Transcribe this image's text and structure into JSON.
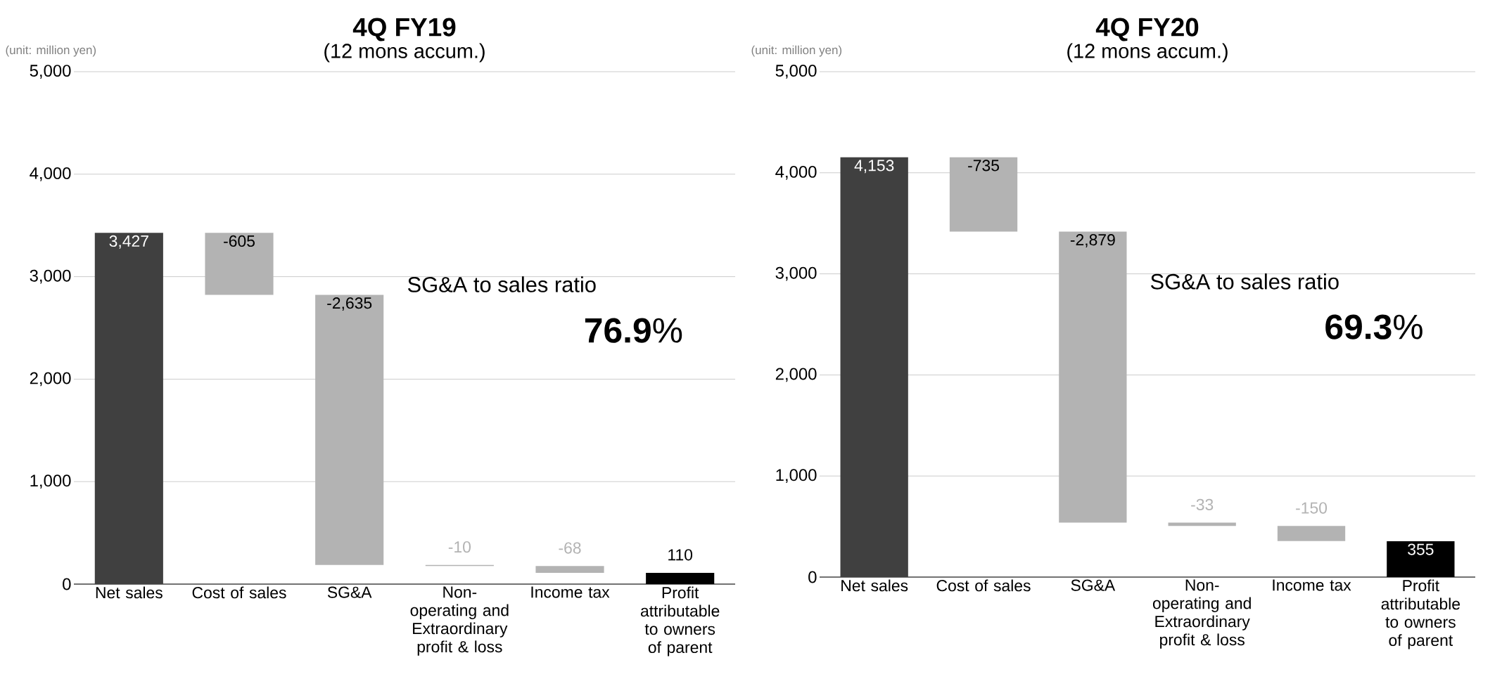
{
  "chart_data": [
    {
      "type": "bar",
      "title": "4Q FY19",
      "subtitle": "(12 mons accum.)",
      "categories": [
        "Net sales",
        "Cost of sales",
        "SG&A",
        "Non-operating and Extraordinary profit & loss",
        "Income tax",
        "Profit attributable to owners of parent"
      ],
      "values": [
        3427,
        -605,
        -2635,
        -10,
        -68,
        110
      ],
      "base": [
        0,
        3427,
        2822,
        187,
        177,
        0
      ],
      "colors": [
        "#404040",
        "#b3b3b3",
        "#b3b3b3",
        "#b3b3b3",
        "#b3b3b3",
        "#000000"
      ],
      "value_labels": [
        "3,427",
        "-605",
        "-2,635",
        "-10",
        "-68",
        "110"
      ],
      "ylim": [
        0,
        5000
      ],
      "yticks": [
        0,
        {
          "value": 1000,
          "label": "1,000"
        },
        {
          "value": 2000,
          "label": "2,000"
        },
        {
          "value": 3000,
          "label": "3,000"
        },
        {
          "value": 4000,
          "label": "4,000"
        },
        {
          "value": 5000,
          "label": "5,000"
        }
      ],
      "grid": "y",
      "annotations": [
        "(unit: million yen)",
        "SG&A to sales ratio",
        "**76.9**%"
      ]
    },
    {
      "type": "bar",
      "title": "4Q FY20",
      "subtitle": "(12 mons accum.)",
      "categories": [
        "Net sales",
        "Cost of sales",
        "SG&A",
        "Non-operating and Extraordinary profit & loss",
        "Income tax",
        "Profit attributable to owners of parent"
      ],
      "values": [
        4153,
        -735,
        -2879,
        -33,
        -150,
        355
      ],
      "base": [
        0,
        4153,
        3418,
        539,
        506,
        0
      ],
      "colors": [
        "#404040",
        "#b3b3b3",
        "#b3b3b3",
        "#b3b3b3",
        "#b3b3b3",
        "#000000"
      ],
      "value_labels": [
        "4,153",
        "-735",
        "-2,879",
        "-33",
        "-150",
        "355"
      ],
      "ylim": [
        0,
        5000
      ],
      "yticks": [
        0,
        {
          "value": 1000,
          "label": "1,000"
        },
        {
          "value": 2000,
          "label": "2,000"
        },
        {
          "value": 3000,
          "label": "3,000"
        },
        {
          "value": 4000,
          "label": "4,000"
        },
        {
          "value": 5000,
          "label": "5,000"
        }
      ],
      "grid": "y",
      "annotations": [
        "(unit: million yen)",
        "SG&A to sales ratio",
        "**69.3**%"
      ]
    }
  ]
}
